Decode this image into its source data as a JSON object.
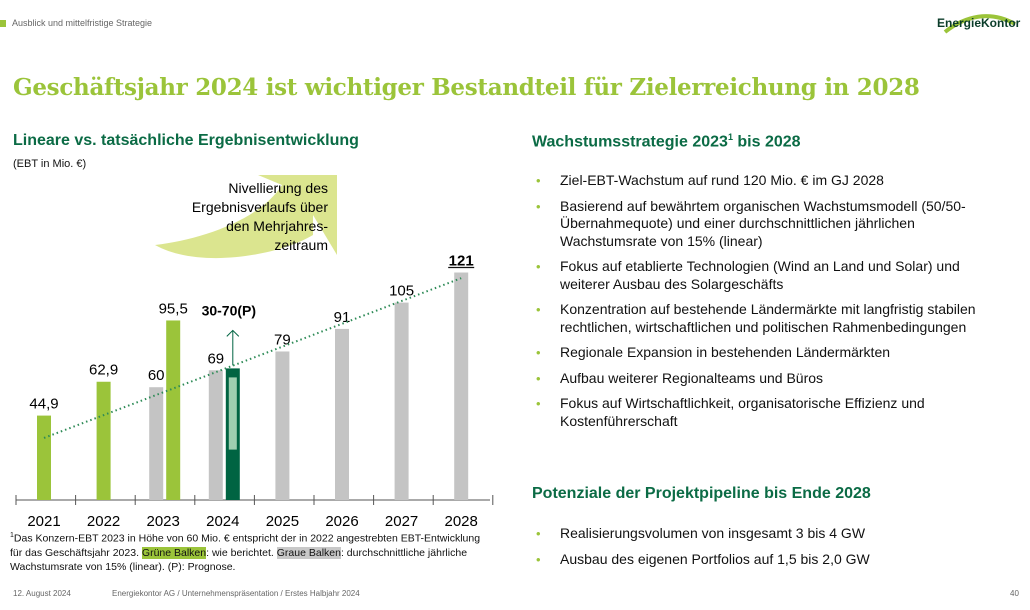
{
  "header": {
    "breadcrumb": "Ausblick und mittelfristige Strategie",
    "logo_text": "EnergieKontor",
    "title": "Geschäftsjahr 2024 ist wichtiger Bestandteil für Zielerreichung in 2028"
  },
  "left": {
    "heading": "Lineare vs. tatsächliche Ergebnisentwicklung",
    "unit": "(EBT in Mio. €)",
    "arrow_text": [
      "Nivellierung  des",
      "Ergebnisverlaufs über",
      "den Mehrjahres-",
      "zeitraum"
    ],
    "note": {
      "line1": "Das Konzern-EBT 2023 in Höhe von 60 Mio. € entspricht der in 2022 angestrebten EBT-Entwicklung für das Geschäftsjahr 2023. ",
      "sup": "1",
      "green": "Grüne Balken",
      "mid": ": wie berichtet. ",
      "gray": "Graue Balken",
      "end": ": durchschnittliche jährliche Wachstumsrate von 15% (linear).  (P): Prognose."
    }
  },
  "chart_data": {
    "type": "bar",
    "categories": [
      "2021",
      "2022",
      "2023",
      "2024",
      "2025",
      "2026",
      "2027",
      "2028"
    ],
    "series": [
      {
        "name": "Grüne Balken",
        "color": "#9bc43a",
        "values": [
          44.9,
          62.9,
          95.5,
          null,
          null,
          null,
          null,
          null
        ],
        "labels": [
          "44,9",
          "62,9",
          "95,5",
          null,
          null,
          null,
          null,
          null
        ]
      },
      {
        "name": "Graue Balken",
        "color": "#c4c4c4",
        "values": [
          null,
          null,
          60,
          69,
          79,
          91,
          105,
          121
        ],
        "labels": [
          null,
          null,
          "60",
          "69",
          "79",
          "91",
          "105",
          "121"
        ]
      }
    ],
    "forecast": {
      "category": "2024",
      "range": [
        30,
        70
      ],
      "label": "30-70(P)",
      "color": "#006442"
    },
    "trend_line": {
      "style": "dotted",
      "color": "#2e8b57",
      "from": [
        "2021",
        33
      ],
      "to": [
        "2028",
        118
      ]
    },
    "ylim": [
      0,
      121
    ]
  },
  "right": {
    "heading1": "Wachstumsstrategie 2023",
    "heading1_sup": "1",
    "heading1_end": " bis 2028",
    "items1": [
      "Ziel-EBT-Wachstum auf rund 120 Mio. € im GJ 2028",
      "Basierend auf bewährtem organischen Wachstumsmodell (50/50-Übernahmequote) und einer durchschnittlichen jährlichen Wachstumsrate von 15% (linear)",
      "Fokus auf etablierte Technologien (Wind an Land und Solar) und weiterer Ausbau des Solargeschäfts",
      "Konzentration auf bestehende Ländermärkte mit langfristig stabilen rechtlichen, wirtschaftlichen und politischen Rahmenbedingungen",
      "Regionale Expansion in bestehenden Ländermärkten",
      "Aufbau weiterer Regionalteams und Büros",
      "Fokus auf Wirtschaftlichkeit, organisatorische Effizienz und Kostenführerschaft"
    ],
    "heading2": "Potenziale der Projektpipeline bis Ende 2028",
    "items2": [
      "Realisierungsvolumen von insgesamt 3 bis 4 GW",
      "Ausbau des eigenen Portfolios auf 1,5 bis 2,0 GW"
    ]
  },
  "footer": {
    "date": "12. August 2024",
    "source": "Energiekontor AG / Unternehmenspräsentation / Erstes Halbjahr 2024",
    "page": "40"
  }
}
